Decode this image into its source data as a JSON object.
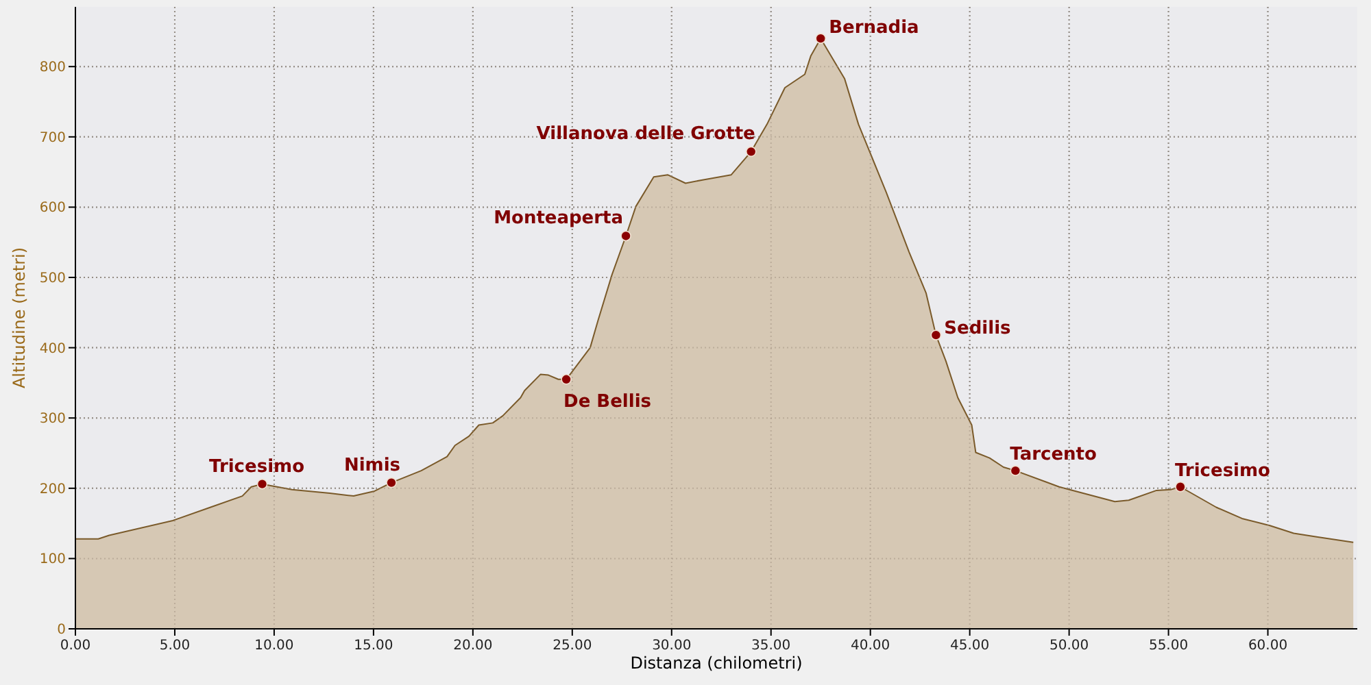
{
  "chart_data": {
    "type": "area",
    "xlabel": "Distanza (chilometri)",
    "ylabel": "Altitudine (metri)",
    "xlim": [
      0,
      64.5
    ],
    "ylim": [
      0,
      885
    ],
    "xticks": [
      {
        "value": 0,
        "label": "0.00"
      },
      {
        "value": 5,
        "label": "5.00"
      },
      {
        "value": 10,
        "label": "10.00"
      },
      {
        "value": 15,
        "label": "15.00"
      },
      {
        "value": 20,
        "label": "20.00"
      },
      {
        "value": 25,
        "label": "25.00"
      },
      {
        "value": 30,
        "label": "30.00"
      },
      {
        "value": 35,
        "label": "35.00"
      },
      {
        "value": 40,
        "label": "40.00"
      },
      {
        "value": 45,
        "label": "45.00"
      },
      {
        "value": 50,
        "label": "50.00"
      },
      {
        "value": 55,
        "label": "55.00"
      },
      {
        "value": 60,
        "label": "60.00"
      }
    ],
    "yticks": [
      0,
      100,
      200,
      300,
      400,
      500,
      600,
      700,
      800
    ],
    "grid": true,
    "series": [
      {
        "color": "#d6c8b4",
        "x": [
          0,
          1.15,
          1.7,
          4.9,
          6.8,
          8.4,
          8.85,
          9.4,
          10.9,
          12.8,
          14.0,
          15.05,
          15.9,
          17.4,
          18.7,
          19.1,
          19.8,
          20.3,
          21.0,
          21.5,
          22.4,
          22.6,
          23.4,
          23.8,
          24.3,
          24.7,
          25.9,
          26.3,
          27.0,
          27.7,
          28.2,
          29.1,
          29.8,
          30.7,
          31.6,
          33.0,
          34.0,
          34.8,
          35.7,
          36.7,
          37.0,
          37.5,
          38.7,
          39.4,
          40.8,
          41.95,
          42.8,
          43.3,
          43.8,
          44.4,
          45.1,
          45.3,
          46.0,
          46.7,
          47.3,
          49.5,
          52.3,
          53.0,
          54.4,
          55.1,
          55.6,
          57.4,
          58.7,
          60.1,
          61.3,
          62.4,
          64.3
        ],
        "values": [
          128,
          128,
          133,
          154,
          173,
          189,
          202,
          206,
          198,
          193,
          189,
          196,
          208,
          225,
          245,
          261,
          274,
          290,
          293,
          303,
          329,
          339,
          362,
          361,
          355,
          355,
          400,
          439,
          504,
          559,
          601,
          643,
          646,
          634,
          639,
          646,
          679,
          718,
          770,
          789,
          815,
          840,
          783,
          718,
          621,
          536,
          478,
          418,
          381,
          329,
          290,
          251,
          243,
          230,
          225,
          202,
          181,
          183,
          197,
          198,
          202,
          173,
          157,
          147,
          136,
          131,
          123
        ]
      }
    ],
    "annotations": [
      {
        "text": "Tricesimo",
        "x": 9.4,
        "y": 206
      },
      {
        "text": "Nimis",
        "x": 15.9,
        "y": 208
      },
      {
        "text": "De Bellis",
        "x": 24.7,
        "y": 355
      },
      {
        "text": "Monteaperta",
        "x": 27.7,
        "y": 559
      },
      {
        "text": "Villanova delle Grotte",
        "x": 34.0,
        "y": 679
      },
      {
        "text": "Bernadia",
        "x": 37.5,
        "y": 840
      },
      {
        "text": "Sedilis",
        "x": 43.3,
        "y": 418
      },
      {
        "text": "Tarcento",
        "x": 47.3,
        "y": 225
      },
      {
        "text": "Tricesimo",
        "x": 55.6,
        "y": 202
      }
    ]
  }
}
